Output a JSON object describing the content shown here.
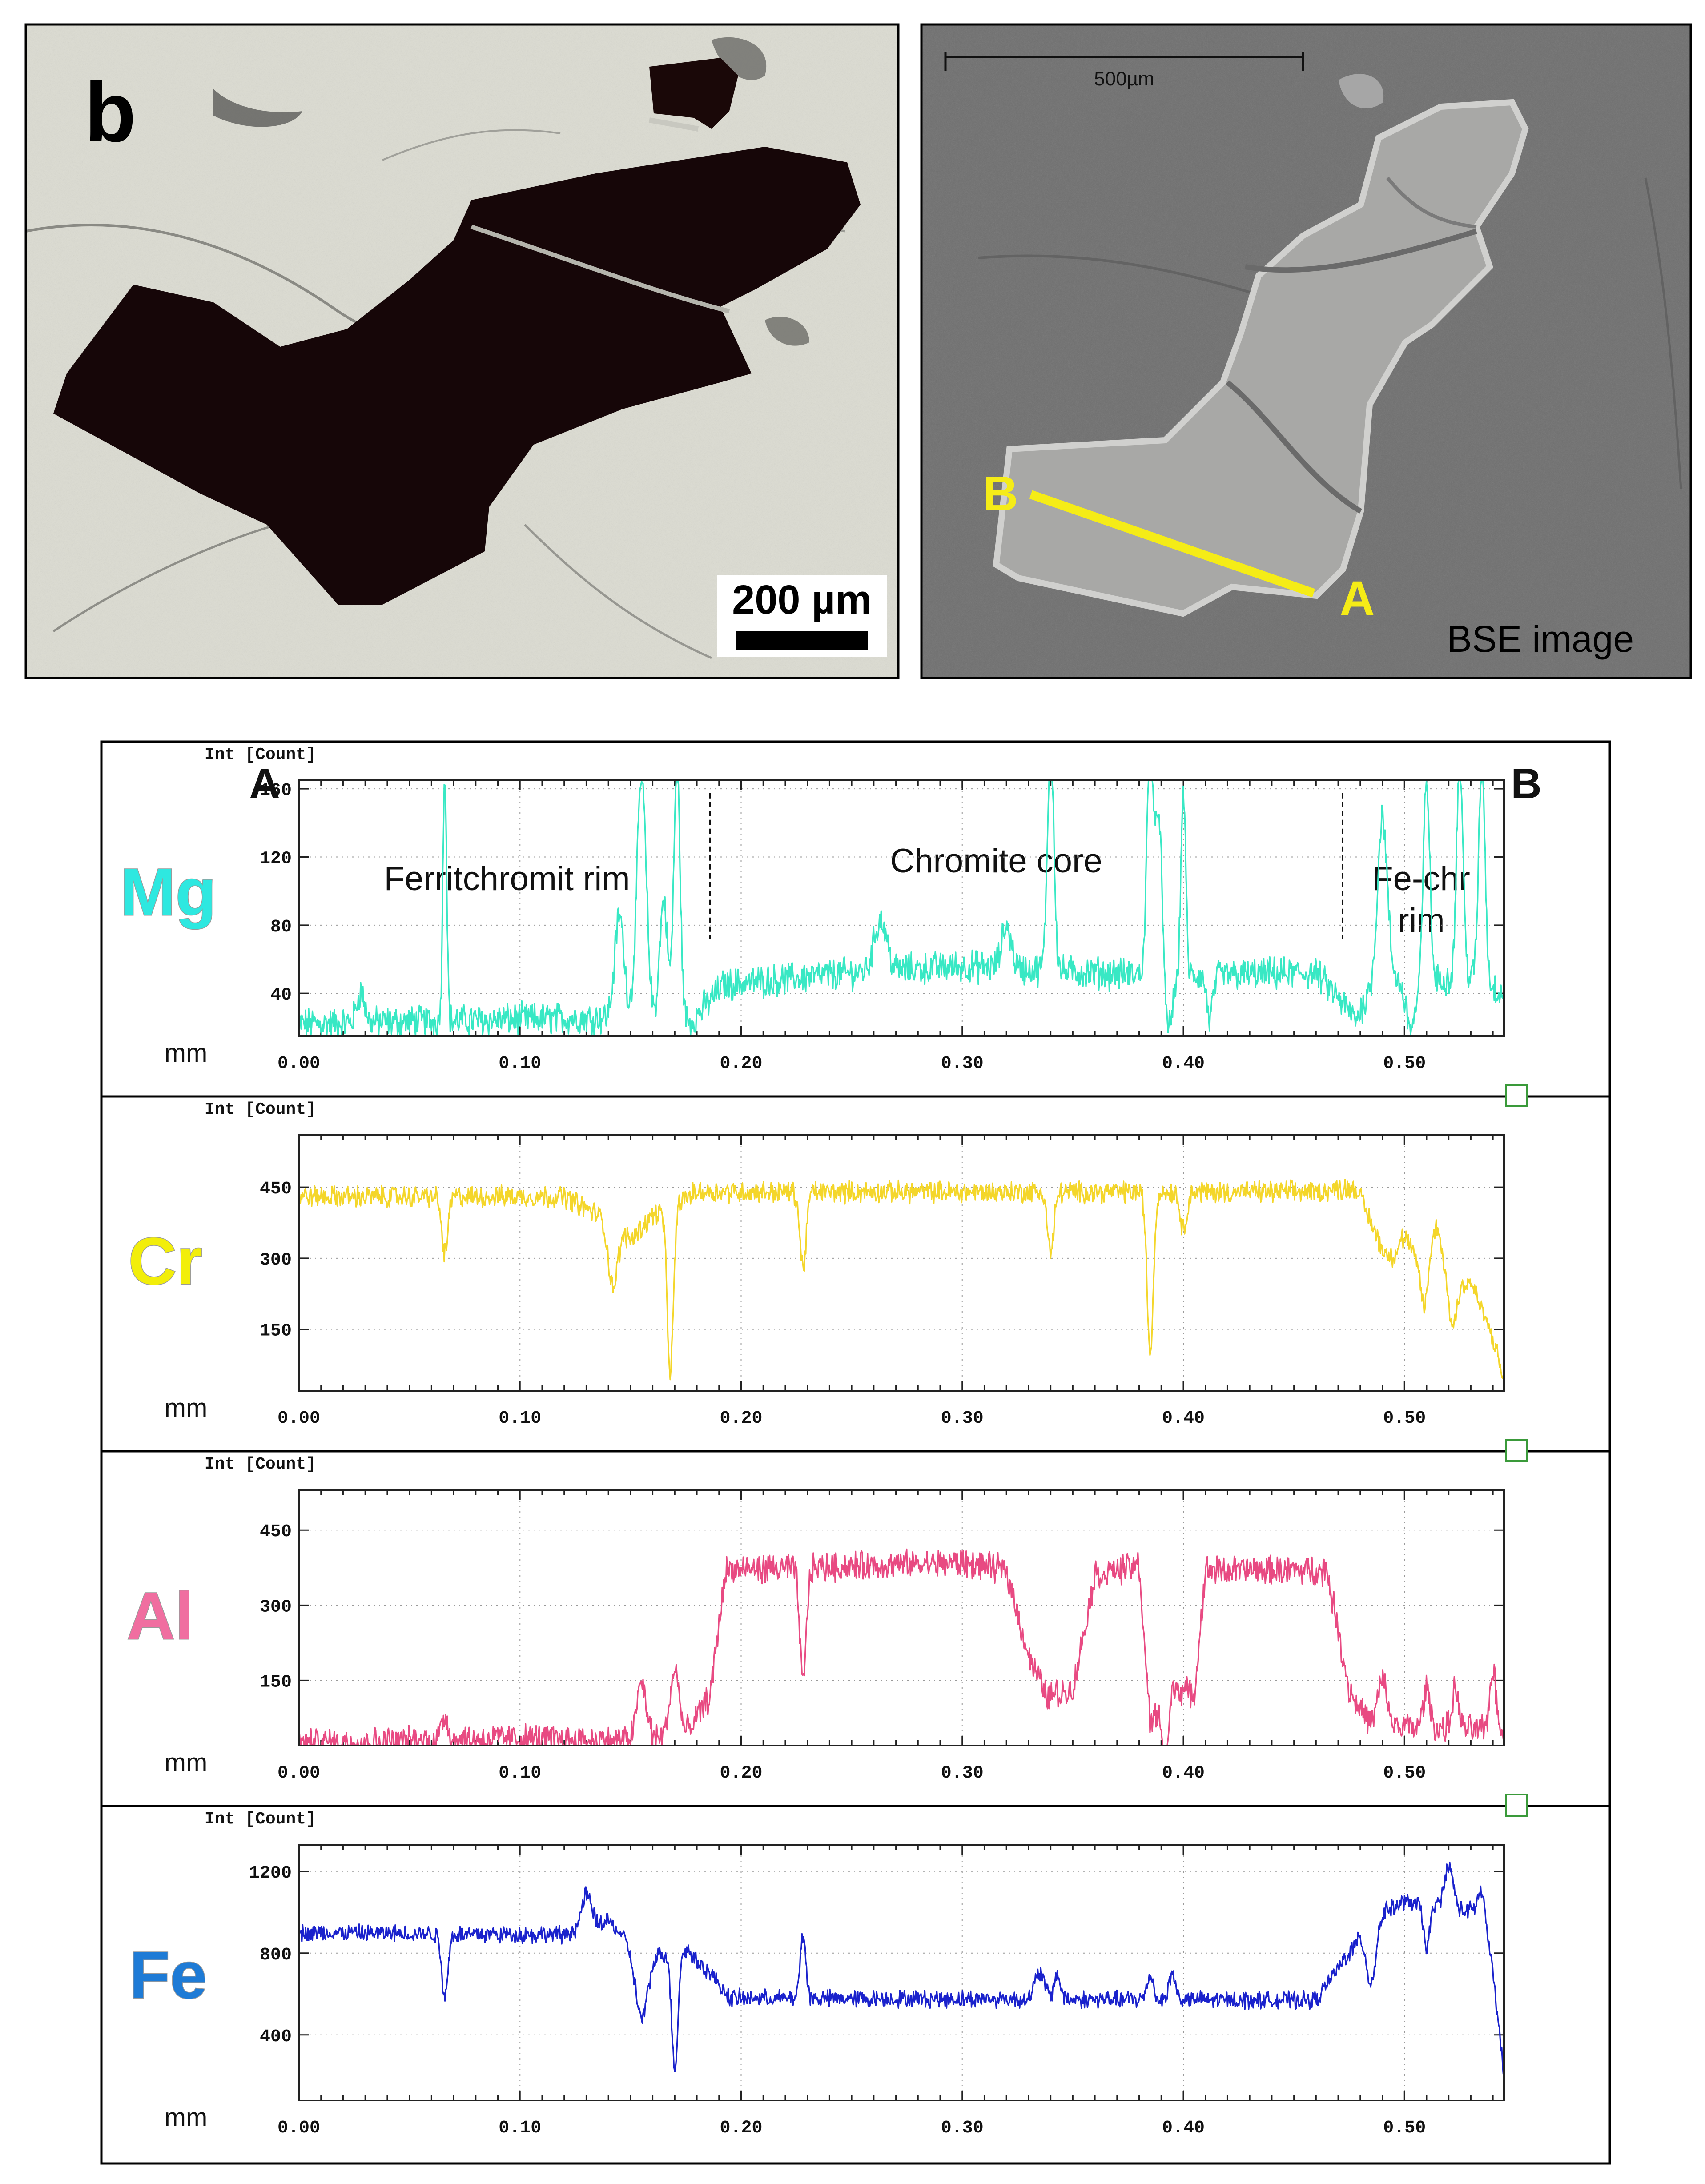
{
  "figure": {
    "panel_letter": "b",
    "photo_scale_bar_label": "200 µm",
    "bse_scale_label": "500µm",
    "bse_caption": "BSE image",
    "point_a": "A",
    "point_b": "B",
    "colors": {
      "profile_line": "#f5ec17",
      "bse_background": "#6e6e6e",
      "frame": "#000000"
    }
  },
  "chart_data": [
    {
      "type": "line",
      "element": "Mg",
      "element_color": "#2ee8e0",
      "line_color": "#38e8c4",
      "title": "",
      "ylabel": "Int [Count]",
      "xlabel": "mm",
      "xlim": [
        0,
        0.545
      ],
      "ylim": [
        15,
        165
      ],
      "yticks": [
        40,
        80,
        120,
        160
      ],
      "xticks": [
        0.0,
        0.1,
        0.2,
        0.3,
        0.4,
        0.5
      ],
      "xtick_labels": [
        "0.00",
        "0.10",
        "0.20",
        "0.30",
        "0.40",
        "0.50"
      ],
      "ytick_labels": [
        "40",
        "80",
        "120",
        "160"
      ],
      "endpoint_left": "A",
      "endpoint_right": "B",
      "region_labels": [
        "Ferritchromit rim",
        "Chromite core",
        "Fe-chr",
        "rim"
      ],
      "boundaries": [
        0.186,
        0.472
      ],
      "base": [
        [
          0,
          22
        ],
        [
          0.14,
          26
        ],
        [
          0.178,
          24
        ],
        [
          0.192,
          45
        ],
        [
          0.25,
          52
        ],
        [
          0.3,
          56
        ],
        [
          0.36,
          52
        ],
        [
          0.4,
          50
        ],
        [
          0.46,
          52
        ],
        [
          0.478,
          25
        ],
        [
          0.49,
          55
        ],
        [
          0.5,
          45
        ],
        [
          0.53,
          50
        ],
        [
          0.545,
          40
        ]
      ],
      "noise": 5,
      "spikes": [
        [
          0.028,
          18,
          0.0025
        ],
        [
          0.066,
          148,
          0.0012
        ],
        [
          0.145,
          60,
          0.003
        ],
        [
          0.155,
          140,
          0.003
        ],
        [
          0.165,
          70,
          0.0025
        ],
        [
          0.171,
          150,
          0.002
        ],
        [
          0.263,
          30,
          0.004
        ],
        [
          0.32,
          25,
          0.003
        ],
        [
          0.34,
          140,
          0.002
        ],
        [
          0.385,
          140,
          0.002
        ],
        [
          0.389,
          100,
          0.002
        ],
        [
          0.4,
          110,
          0.0015
        ],
        [
          0.49,
          90,
          0.003
        ],
        [
          0.51,
          120,
          0.002
        ],
        [
          0.525,
          130,
          0.002
        ],
        [
          0.535,
          130,
          0.002
        ]
      ],
      "dips": [
        [
          0.393,
          30,
          0.003
        ],
        [
          0.412,
          25,
          0.002
        ],
        [
          0.503,
          25,
          0.003
        ]
      ]
    },
    {
      "type": "line",
      "element": "Cr",
      "element_color": "#f2ee0a",
      "line_color": "#f4d62a",
      "title": "",
      "ylabel": "Int [Count]",
      "xlabel": "mm",
      "xlim": [
        0,
        0.545
      ],
      "ylim": [
        20,
        560
      ],
      "yticks": [
        150,
        300,
        450
      ],
      "xticks": [
        0.0,
        0.1,
        0.2,
        0.3,
        0.4,
        0.5
      ],
      "xtick_labels": [
        "0.00",
        "0.10",
        "0.20",
        "0.30",
        "0.40",
        "0.50"
      ],
      "ytick_labels": [
        "150",
        "300",
        "450"
      ],
      "base": [
        [
          0,
          430
        ],
        [
          0.12,
          430
        ],
        [
          0.14,
          380
        ],
        [
          0.15,
          340
        ],
        [
          0.16,
          390
        ],
        [
          0.18,
          440
        ],
        [
          0.46,
          440
        ],
        [
          0.478,
          450
        ],
        [
          0.49,
          320
        ],
        [
          0.5,
          260
        ],
        [
          0.51,
          300
        ],
        [
          0.52,
          230
        ],
        [
          0.53,
          250
        ],
        [
          0.54,
          130
        ],
        [
          0.545,
          40
        ]
      ],
      "noise": 12,
      "spikes": [
        [
          0.5,
          80,
          0.004
        ],
        [
          0.515,
          100,
          0.003
        ]
      ],
      "dips": [
        [
          0.066,
          120,
          0.002
        ],
        [
          0.142,
          130,
          0.003
        ],
        [
          0.168,
          350,
          0.002
        ],
        [
          0.228,
          160,
          0.002
        ],
        [
          0.34,
          130,
          0.002
        ],
        [
          0.385,
          340,
          0.002
        ],
        [
          0.4,
          80,
          0.002
        ],
        [
          0.509,
          100,
          0.002
        ],
        [
          0.522,
          80,
          0.002
        ]
      ]
    },
    {
      "type": "line",
      "element": "Al",
      "element_color": "#f06ea0",
      "line_color": "#e84a82",
      "title": "",
      "ylabel": "Int [Count]",
      "xlabel": "mm",
      "xlim": [
        0,
        0.545
      ],
      "ylim": [
        20,
        530
      ],
      "yticks": [
        150,
        300,
        450
      ],
      "xticks": [
        0.0,
        0.1,
        0.2,
        0.3,
        0.4,
        0.5
      ],
      "xtick_labels": [
        "0.00",
        "0.10",
        "0.20",
        "0.30",
        "0.40",
        "0.50"
      ],
      "ytick_labels": [
        "150",
        "300",
        "450"
      ],
      "base": [
        [
          0,
          25
        ],
        [
          0.1,
          35
        ],
        [
          0.14,
          30
        ],
        [
          0.175,
          40
        ],
        [
          0.186,
          120
        ],
        [
          0.193,
          370
        ],
        [
          0.3,
          385
        ],
        [
          0.32,
          370
        ],
        [
          0.33,
          200
        ],
        [
          0.338,
          120
        ],
        [
          0.35,
          130
        ],
        [
          0.36,
          360
        ],
        [
          0.38,
          380
        ],
        [
          0.385,
          60
        ],
        [
          0.395,
          140
        ],
        [
          0.405,
          120
        ],
        [
          0.41,
          370
        ],
        [
          0.465,
          370
        ],
        [
          0.475,
          130
        ],
        [
          0.485,
          60
        ],
        [
          0.545,
          50
        ]
      ],
      "noise": 15,
      "spikes": [
        [
          0.066,
          50,
          0.002
        ],
        [
          0.155,
          110,
          0.003
        ],
        [
          0.17,
          130,
          0.003
        ],
        [
          0.49,
          90,
          0.003
        ],
        [
          0.51,
          80,
          0.002
        ],
        [
          0.523,
          80,
          0.002
        ],
        [
          0.54,
          120,
          0.002
        ]
      ],
      "dips": [
        [
          0.228,
          230,
          0.002
        ],
        [
          0.392,
          120,
          0.002
        ]
      ]
    },
    {
      "type": "line",
      "element": "Fe",
      "element_color": "#1e7bd6",
      "line_color": "#1a22cc",
      "title": "",
      "ylabel": "Int [Count]",
      "xlabel": "mm",
      "xlim": [
        0,
        0.545
      ],
      "ylim": [
        80,
        1330
      ],
      "yticks": [
        400,
        800,
        1200
      ],
      "xticks": [
        0.0,
        0.1,
        0.2,
        0.3,
        0.4,
        0.5
      ],
      "xtick_labels": [
        "0.00",
        "0.10",
        "0.20",
        "0.30",
        "0.40",
        "0.50"
      ],
      "ytick_labels": [
        "400",
        "800",
        "1200"
      ],
      "base": [
        [
          0,
          900
        ],
        [
          0.12,
          890
        ],
        [
          0.14,
          960
        ],
        [
          0.155,
          780
        ],
        [
          0.175,
          820
        ],
        [
          0.186,
          700
        ],
        [
          0.195,
          580
        ],
        [
          0.46,
          570
        ],
        [
          0.478,
          850
        ],
        [
          0.49,
          1000
        ],
        [
          0.5,
          1050
        ],
        [
          0.53,
          1000
        ],
        [
          0.54,
          700
        ],
        [
          0.545,
          200
        ]
      ],
      "noise": 22,
      "spikes": [
        [
          0.13,
          160,
          0.003
        ],
        [
          0.228,
          310,
          0.0018
        ],
        [
          0.335,
          130,
          0.003
        ],
        [
          0.343,
          120,
          0.002
        ],
        [
          0.385,
          120,
          0.002
        ],
        [
          0.395,
          130,
          0.002
        ],
        [
          0.52,
          200,
          0.003
        ],
        [
          0.535,
          240,
          0.003
        ]
      ],
      "dips": [
        [
          0.066,
          300,
          0.002
        ],
        [
          0.155,
          300,
          0.004
        ],
        [
          0.17,
          570,
          0.002
        ],
        [
          0.485,
          280,
          0.003
        ],
        [
          0.51,
          200,
          0.002
        ]
      ]
    }
  ]
}
